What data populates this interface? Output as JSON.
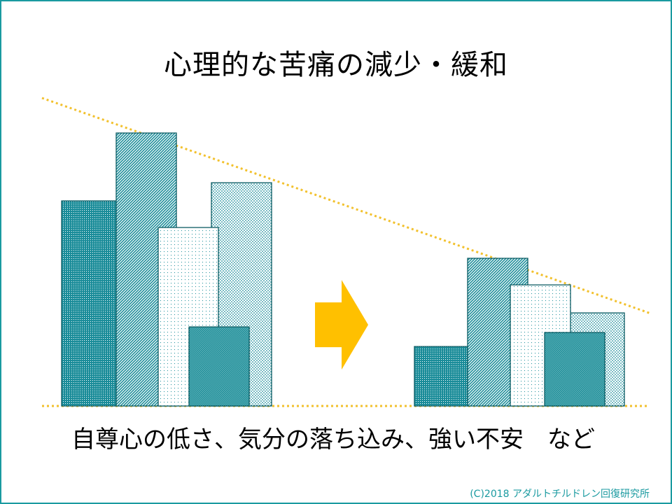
{
  "title": "心理的な苦痛の減少・緩和",
  "caption": "自尊心の低さ、気分の落ち込み、強い不安　など",
  "copyright": "(C)2018 アダルトチルドレン回復研究所",
  "colors": {
    "border": "#1a9aa0",
    "teal": "#1a8c99",
    "arrow": "#ffc000",
    "dotted_line": "#f2c12e"
  },
  "diagram": {
    "before": {
      "bars": [
        {
          "name": "bar-before-1",
          "relative_height": 0.51,
          "pattern": "dense-dots"
        },
        {
          "name": "bar-before-2",
          "relative_height": 0.68,
          "pattern": "diagonal-hatch"
        },
        {
          "name": "bar-before-3",
          "relative_height": 0.44,
          "pattern": "light-dots"
        },
        {
          "name": "bar-before-4",
          "relative_height": 0.19,
          "pattern": "crosshatch"
        },
        {
          "name": "bar-before-5",
          "relative_height": 0.55,
          "pattern": "medium-dots"
        }
      ]
    },
    "after": {
      "bars": [
        {
          "name": "bar-after-1",
          "relative_height": 0.15,
          "pattern": "dense-dots"
        },
        {
          "name": "bar-after-2",
          "relative_height": 0.37,
          "pattern": "diagonal-hatch"
        },
        {
          "name": "bar-after-3",
          "relative_height": 0.3,
          "pattern": "light-dots"
        },
        {
          "name": "bar-after-4",
          "relative_height": 0.18,
          "pattern": "crosshatch"
        },
        {
          "name": "bar-after-5",
          "relative_height": 0.23,
          "pattern": "medium-dots"
        }
      ]
    }
  }
}
